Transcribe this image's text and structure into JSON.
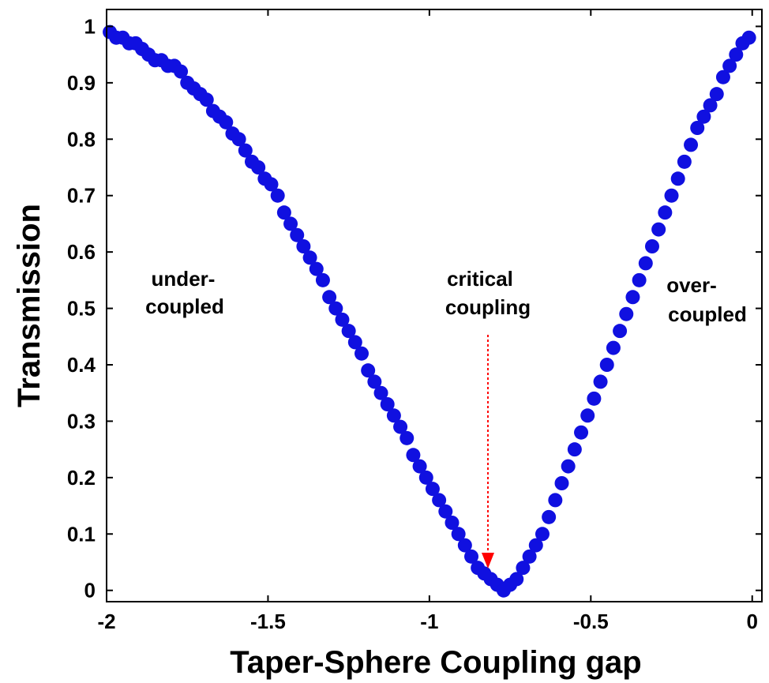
{
  "chart_data": {
    "type": "scatter",
    "title": "",
    "xlabel": "Taper-Sphere Coupling gap",
    "ylabel": "Transmission",
    "xlim": [
      -2,
      0.03
    ],
    "ylim": [
      -0.02,
      1.03
    ],
    "xticks": [
      -2,
      -1.5,
      -1,
      -0.5,
      0
    ],
    "xtick_labels": [
      "-2",
      "-1.5",
      "-1",
      "-0.5",
      "0"
    ],
    "yticks": [
      0,
      0.1,
      0.2,
      0.3,
      0.4,
      0.5,
      0.6,
      0.7,
      0.8,
      0.9,
      1
    ],
    "ytick_labels": [
      "0",
      "0.1",
      "0.2",
      "0.3",
      "0.4",
      "0.5",
      "0.6",
      "0.7",
      "0.8",
      "0.9",
      "1"
    ],
    "grid": false,
    "marker_color": "#1010e0",
    "arrow_color": "#ff0000",
    "series": [
      {
        "x": [
          -1.99,
          -1.97,
          -1.95,
          -1.93,
          -1.91,
          -1.89,
          -1.87,
          -1.85,
          -1.83,
          -1.81,
          -1.79,
          -1.77,
          -1.75,
          -1.73,
          -1.71,
          -1.69,
          -1.67,
          -1.65,
          -1.63,
          -1.61,
          -1.59,
          -1.57,
          -1.55,
          -1.53,
          -1.51,
          -1.49,
          -1.47,
          -1.45,
          -1.43,
          -1.41,
          -1.39,
          -1.37,
          -1.35,
          -1.33,
          -1.31,
          -1.29,
          -1.27,
          -1.25,
          -1.23,
          -1.21,
          -1.19,
          -1.17,
          -1.15,
          -1.13,
          -1.11,
          -1.09,
          -1.07,
          -1.05,
          -1.03,
          -1.01,
          -0.99,
          -0.97,
          -0.95,
          -0.93,
          -0.91,
          -0.89,
          -0.87,
          -0.85,
          -0.83,
          -0.81,
          -0.79,
          -0.77,
          -0.75,
          -0.73,
          -0.71,
          -0.69,
          -0.67,
          -0.65,
          -0.63,
          -0.61,
          -0.59,
          -0.57,
          -0.55,
          -0.53,
          -0.51,
          -0.49,
          -0.47,
          -0.45,
          -0.43,
          -0.41,
          -0.39,
          -0.37,
          -0.35,
          -0.33,
          -0.31,
          -0.29,
          -0.27,
          -0.25,
          -0.23,
          -0.21,
          -0.19,
          -0.17,
          -0.15,
          -0.13,
          -0.11,
          -0.09,
          -0.07,
          -0.05,
          -0.03,
          -0.01
        ],
        "y": [
          0.99,
          0.98,
          0.98,
          0.97,
          0.97,
          0.96,
          0.95,
          0.94,
          0.94,
          0.93,
          0.93,
          0.92,
          0.9,
          0.89,
          0.88,
          0.87,
          0.85,
          0.84,
          0.83,
          0.81,
          0.8,
          0.78,
          0.76,
          0.75,
          0.73,
          0.72,
          0.7,
          0.67,
          0.65,
          0.63,
          0.61,
          0.59,
          0.57,
          0.55,
          0.52,
          0.5,
          0.48,
          0.46,
          0.44,
          0.42,
          0.39,
          0.37,
          0.35,
          0.33,
          0.31,
          0.29,
          0.27,
          0.24,
          0.22,
          0.2,
          0.18,
          0.16,
          0.14,
          0.12,
          0.1,
          0.08,
          0.06,
          0.04,
          0.03,
          0.02,
          0.01,
          0.0,
          0.01,
          0.02,
          0.04,
          0.06,
          0.08,
          0.1,
          0.13,
          0.16,
          0.19,
          0.22,
          0.25,
          0.28,
          0.31,
          0.34,
          0.37,
          0.4,
          0.43,
          0.46,
          0.49,
          0.52,
          0.55,
          0.58,
          0.61,
          0.64,
          0.67,
          0.7,
          0.73,
          0.76,
          0.79,
          0.82,
          0.84,
          0.86,
          0.88,
          0.91,
          0.93,
          0.95,
          0.97,
          0.98
        ]
      }
    ],
    "annotations": [
      {
        "id": "under-coupled",
        "lines": [
          "under-",
          "coupled"
        ]
      },
      {
        "id": "critical-coupling",
        "lines": [
          "critical",
          "coupling"
        ]
      },
      {
        "id": "over-coupled",
        "lines": [
          "over-",
          "coupled"
        ]
      }
    ]
  }
}
